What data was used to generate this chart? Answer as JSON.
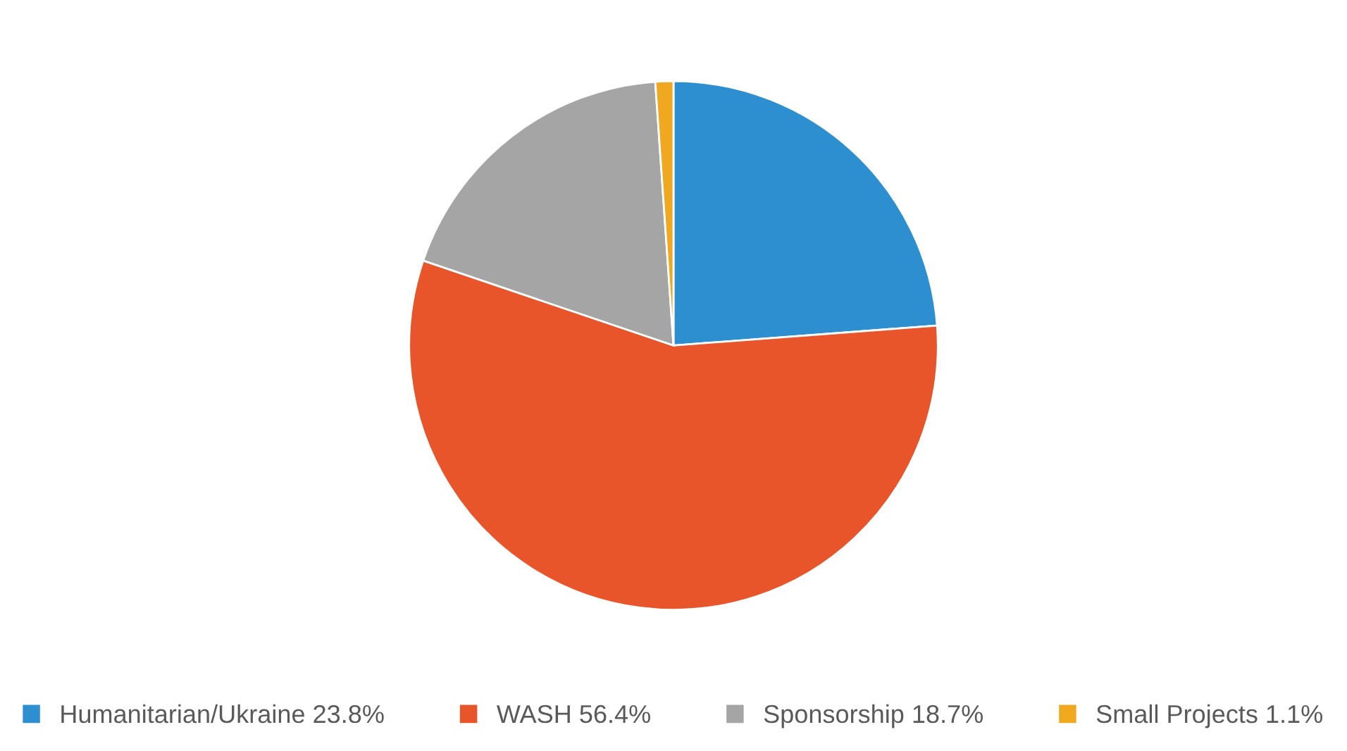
{
  "chart_data": {
    "type": "pie",
    "categories": [
      "Humanitarian/Ukraine",
      "WASH",
      "Sponsorship",
      "Small Projects"
    ],
    "values": [
      23.8,
      56.4,
      18.7,
      1.1
    ],
    "value_labels": [
      "23.8%",
      "56.4%",
      "18.7%",
      "1.1%"
    ],
    "colors": [
      "#2e8fd0",
      "#e8552b",
      "#a5a5a5",
      "#f0a820"
    ],
    "legend": "bottom"
  }
}
